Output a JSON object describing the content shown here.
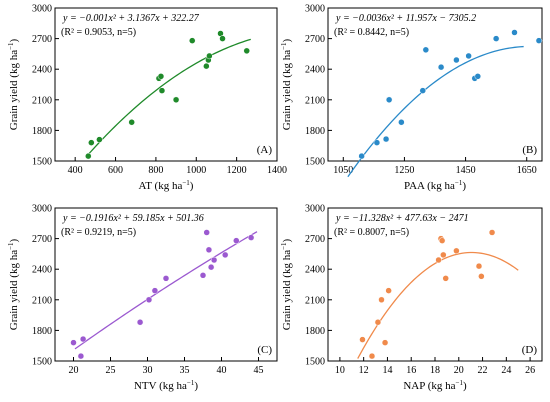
{
  "colors": {
    "A": "#1f8a2a",
    "B": "#2a8ac9",
    "C": "#9b59d0",
    "D": "#f08a4b",
    "pointEdge": "#ffffff"
  },
  "chart_data": [
    {
      "id": "A",
      "type": "scatter",
      "panel_label": "(A)",
      "legend_position": "bottom-right",
      "xlabel": "AT",
      "xunit": "(kg ha",
      "ylabel": "Grain yield",
      "yunit": "(kg ha",
      "xlim": [
        300,
        1400
      ],
      "ylim": [
        1500,
        3000
      ],
      "xticks": [
        400,
        600,
        800,
        1000,
        1200,
        1400
      ],
      "yticks": [
        1500,
        1800,
        2100,
        2400,
        2700,
        3000
      ],
      "equation": "y = −0.001x² + 3.1367x + 322.27",
      "stats": "(R² = 0.9053, n=5)",
      "fit": {
        "a": -0.001,
        "b": 3.1367,
        "c": 322.27,
        "x0": 460,
        "x1": 1270
      },
      "points": [
        [
          465,
          1548
        ],
        [
          480,
          1680
        ],
        [
          520,
          1710
        ],
        [
          680,
          1880
        ],
        [
          815,
          2310
        ],
        [
          825,
          2330
        ],
        [
          830,
          2190
        ],
        [
          900,
          2100
        ],
        [
          980,
          2680
        ],
        [
          1050,
          2430
        ],
        [
          1060,
          2490
        ],
        [
          1065,
          2530
        ],
        [
          1120,
          2750
        ],
        [
          1130,
          2700
        ],
        [
          1250,
          2580
        ]
      ]
    },
    {
      "id": "B",
      "type": "scatter",
      "panel_label": "(B)",
      "legend_position": "bottom-right",
      "xlabel": "PAA",
      "xunit": "(kg ha",
      "ylabel": "Grain yield",
      "yunit": "(kg ha",
      "xlim": [
        1000,
        1700
      ],
      "ylim": [
        1500,
        3000
      ],
      "xticks": [
        1050,
        1250,
        1450,
        1650
      ],
      "yticks": [
        1500,
        1800,
        2100,
        2400,
        2700,
        3000
      ],
      "equation": "y = −0.0036x² + 11.957x − 7305.2",
      "stats": "(R² = 0.8442, n=5)",
      "fit": {
        "a": -0.0036,
        "b": 11.957,
        "c": -7305.2,
        "x0": 1065,
        "x1": 1640
      },
      "points": [
        [
          1110,
          1548
        ],
        [
          1160,
          1680
        ],
        [
          1190,
          1715
        ],
        [
          1200,
          2100
        ],
        [
          1240,
          1880
        ],
        [
          1310,
          2190
        ],
        [
          1320,
          2590
        ],
        [
          1370,
          2420
        ],
        [
          1420,
          2490
        ],
        [
          1460,
          2530
        ],
        [
          1480,
          2310
        ],
        [
          1490,
          2330
        ],
        [
          1550,
          2700
        ],
        [
          1610,
          2760
        ],
        [
          1690,
          2680
        ]
      ]
    },
    {
      "id": "C",
      "type": "scatter",
      "panel_label": "(C)",
      "legend_position": "bottom-right",
      "xlabel": "NTV",
      "xunit": "(kg ha",
      "ylabel": "Grain yield",
      "yunit": "(kg ha",
      "xlim": [
        17.5,
        47.5
      ],
      "ylim": [
        1500,
        3000
      ],
      "xticks": [
        20,
        25,
        30,
        35,
        40,
        45
      ],
      "yticks": [
        1500,
        1800,
        2100,
        2400,
        2700,
        3000
      ],
      "equation": "y = −0.1916x² + 59.185x + 501.36",
      "stats": "(R² = 0.9219, n=5)",
      "fit": {
        "a": -0.1916,
        "b": 59.185,
        "c": 501.36,
        "x0": 20.2,
        "x1": 44.8
      },
      "points": [
        [
          20,
          1680
        ],
        [
          21,
          1548
        ],
        [
          21.3,
          1715
        ],
        [
          29,
          1880
        ],
        [
          30.2,
          2100
        ],
        [
          31,
          2190
        ],
        [
          32.5,
          2310
        ],
        [
          37.5,
          2340
        ],
        [
          38,
          2760
        ],
        [
          38.3,
          2590
        ],
        [
          38.6,
          2420
        ],
        [
          39,
          2490
        ],
        [
          40.5,
          2540
        ],
        [
          42,
          2680
        ],
        [
          44,
          2710
        ]
      ]
    },
    {
      "id": "D",
      "type": "scatter",
      "panel_label": "(D)",
      "legend_position": "bottom-right",
      "xlabel": "NAP",
      "xunit": "(kg ha",
      "ylabel": "Grain yield",
      "yunit": "(kg ha",
      "xlim": [
        9,
        27
      ],
      "ylim": [
        1500,
        3000
      ],
      "xticks": [
        10,
        12,
        14,
        16,
        18,
        20,
        22,
        24,
        26
      ],
      "yticks": [
        1500,
        1800,
        2100,
        2400,
        2700,
        3000
      ],
      "equation": "y = −11.328x² + 477.63x − 2471",
      "stats": "(R² = 0.8007, n=5)",
      "fit": {
        "a": -11.328,
        "b": 477.63,
        "c": -2471,
        "x0": 11.5,
        "x1": 25
      },
      "points": [
        [
          11.9,
          1710
        ],
        [
          12.7,
          1548
        ],
        [
          13.2,
          1880
        ],
        [
          13.5,
          2100
        ],
        [
          13.8,
          1680
        ],
        [
          14.1,
          2190
        ],
        [
          18.3,
          2490
        ],
        [
          18.5,
          2700
        ],
        [
          18.6,
          2680
        ],
        [
          18.7,
          2540
        ],
        [
          18.9,
          2310
        ],
        [
          19.8,
          2580
        ],
        [
          21.7,
          2430
        ],
        [
          21.9,
          2330
        ],
        [
          22.8,
          2760
        ]
      ]
    }
  ]
}
